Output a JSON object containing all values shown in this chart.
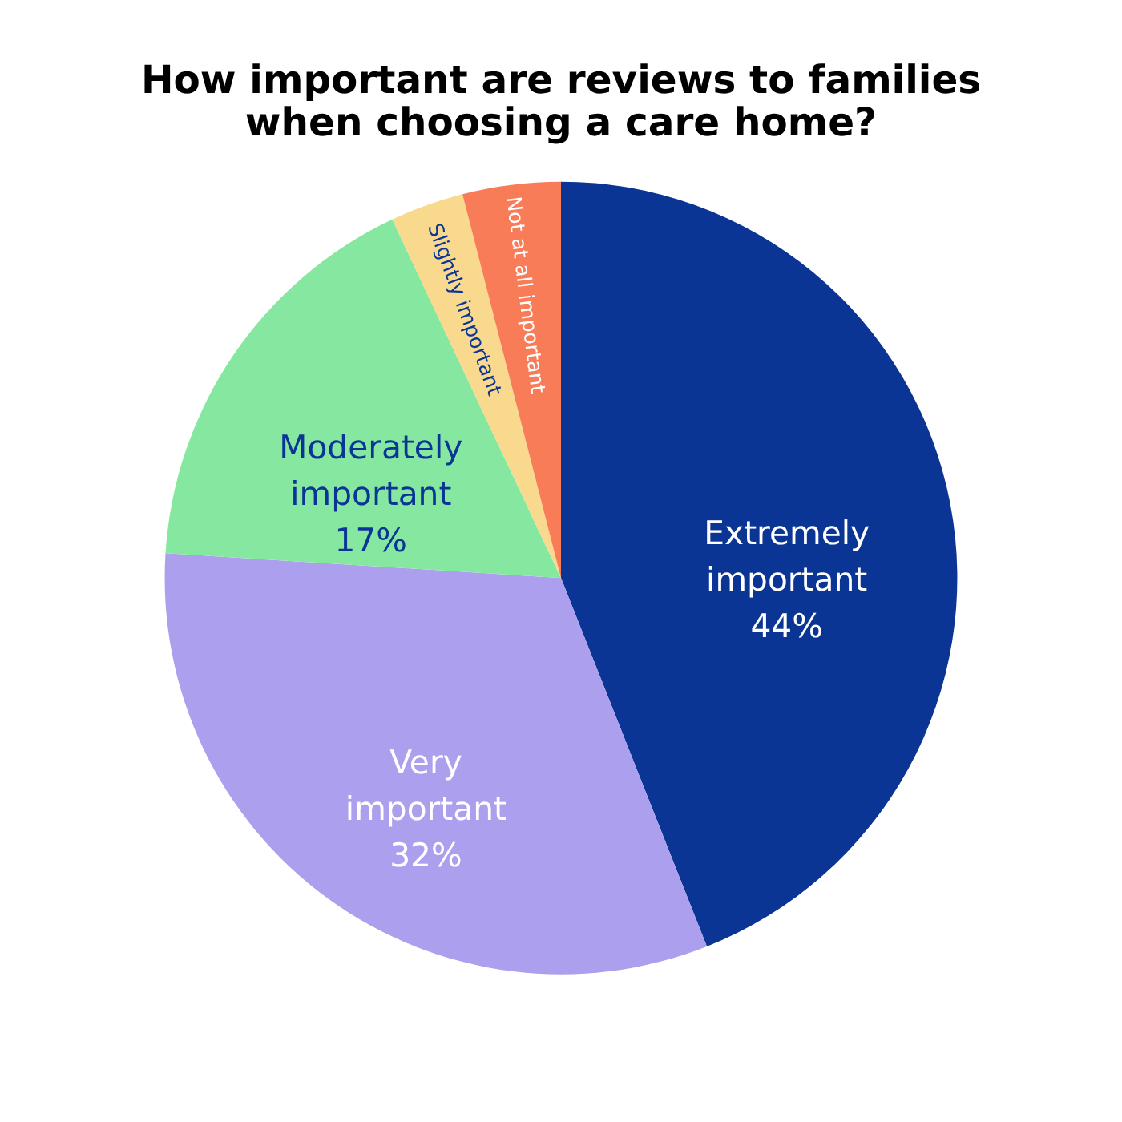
{
  "chart_data": {
    "type": "pie",
    "title": "How important are reviews to families when choosing a care home?",
    "categories": [
      "Extremely important",
      "Very important",
      "Moderately important",
      "Slightly important",
      "Not at all important"
    ],
    "values": [
      44,
      32,
      17,
      3,
      4
    ],
    "value_labels": [
      "44%",
      "32%",
      "17%",
      null,
      null
    ],
    "colors": [
      "#0b3595",
      "#ab9fee",
      "#86e8a0",
      "#f8d98d",
      "#f87c58"
    ],
    "legend": false
  }
}
